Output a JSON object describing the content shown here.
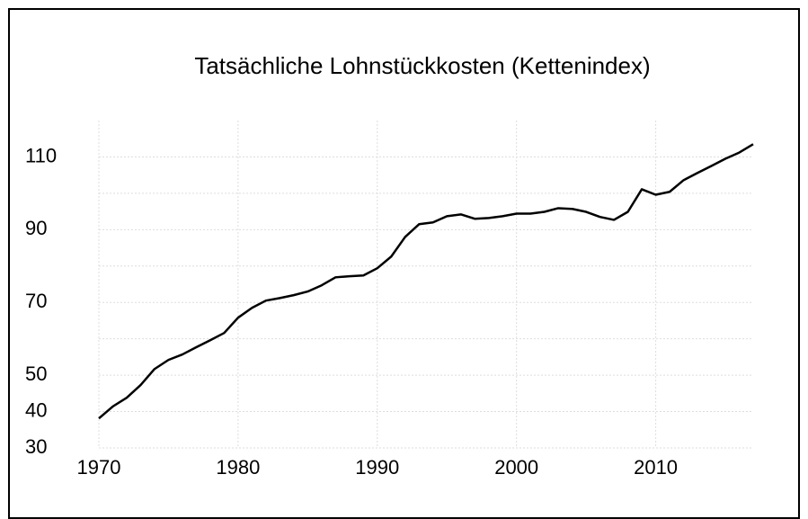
{
  "chart_data": {
    "type": "line",
    "title": "Tatsächliche Lohnstückkosten (Kettenindex)",
    "x": [
      1970,
      1971,
      1972,
      1973,
      1974,
      1975,
      1976,
      1977,
      1978,
      1979,
      1980,
      1981,
      1982,
      1983,
      1984,
      1985,
      1986,
      1987,
      1988,
      1989,
      1990,
      1991,
      1992,
      1993,
      1994,
      1995,
      1996,
      1997,
      1998,
      1999,
      2000,
      2001,
      2002,
      2003,
      2004,
      2005,
      2006,
      2007,
      2008,
      2009,
      2010,
      2011,
      2012,
      2013,
      2014,
      2015,
      2016,
      2017
    ],
    "series": [
      {
        "color": "#000000",
        "values": [
          38.1,
          41.4,
          43.8,
          47.3,
          51.7,
          54.2,
          55.7,
          57.7,
          59.6,
          61.6,
          65.8,
          68.5,
          70.5,
          71.2,
          72,
          73,
          74.7,
          76.9,
          77.2,
          77.4,
          79.4,
          82.6,
          88,
          91.5,
          92,
          93.7,
          94.2,
          93,
          93.2,
          93.7,
          94.4,
          94.4,
          94.9,
          95.9,
          95.7,
          94.9,
          93.5,
          92.7,
          94.9,
          101.1,
          99.6,
          100.4,
          103.6,
          105.6,
          107.5,
          109.5,
          111.2,
          113.5
        ]
      }
    ],
    "xlim": [
      1970,
      2017
    ],
    "xticks": [
      1970,
      1980,
      1990,
      2000,
      2010
    ],
    "ylim": [
      30,
      120
    ],
    "yticks": [
      30,
      40,
      50,
      70,
      90,
      110
    ],
    "yminor": [
      60,
      80,
      100
    ],
    "grid": true
  }
}
